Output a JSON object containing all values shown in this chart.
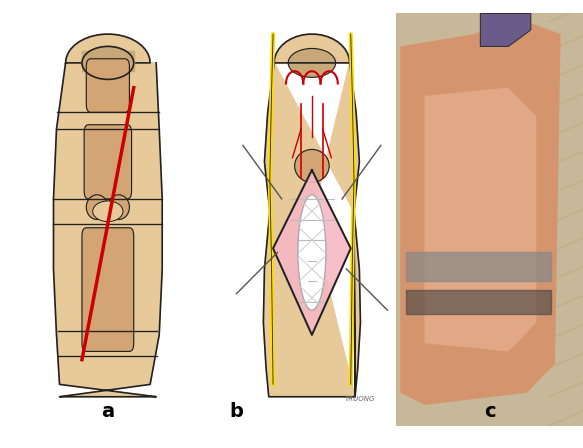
{
  "background_color": "#ffffff",
  "panel_labels": [
    "a",
    "b",
    "c"
  ],
  "label_fontsize": 14,
  "label_fontweight": "bold",
  "skin_color": "#e8c99a",
  "skin_dark": "#d4a574",
  "bone_color": "#d4a574",
  "red_color": "#cc0000",
  "yellow_color": "#ffdd00",
  "pink_color": "#f5b8c4",
  "tendon_color": "#e8e8e8",
  "line_color": "#222222",
  "pointer_color": "#555555",
  "watermark_text": "TRUONG",
  "photo_bg": "#c8956c"
}
